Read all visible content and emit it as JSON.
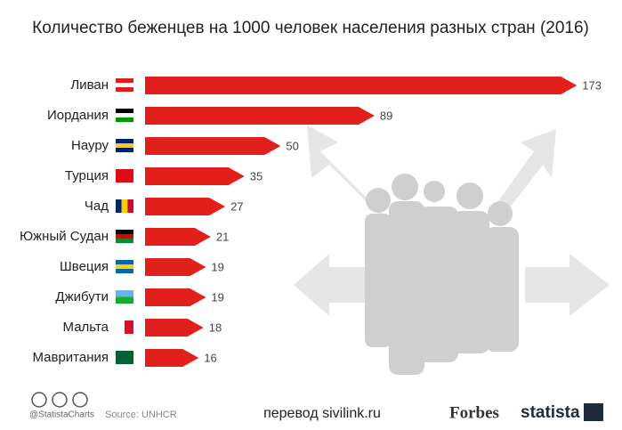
{
  "chart_data": {
    "type": "bar",
    "orientation": "horizontal",
    "title": "Количество беженцев на 1000 человек населения разных стран (2016)",
    "categories": [
      "Ливан",
      "Иордания",
      "Науру",
      "Турция",
      "Чад",
      "Южный Судан",
      "Швеция",
      "Джибути",
      "Мальта",
      "Мавритания"
    ],
    "values": [
      173,
      89,
      50,
      35,
      27,
      21,
      19,
      19,
      18,
      16
    ],
    "color": "#e1201b"
  },
  "footer": {
    "handle": "@StatistaCharts",
    "source": "Source: UNHCR",
    "translation": "перевод sivilink.ru",
    "logos": [
      "Forbes",
      "statista"
    ]
  }
}
